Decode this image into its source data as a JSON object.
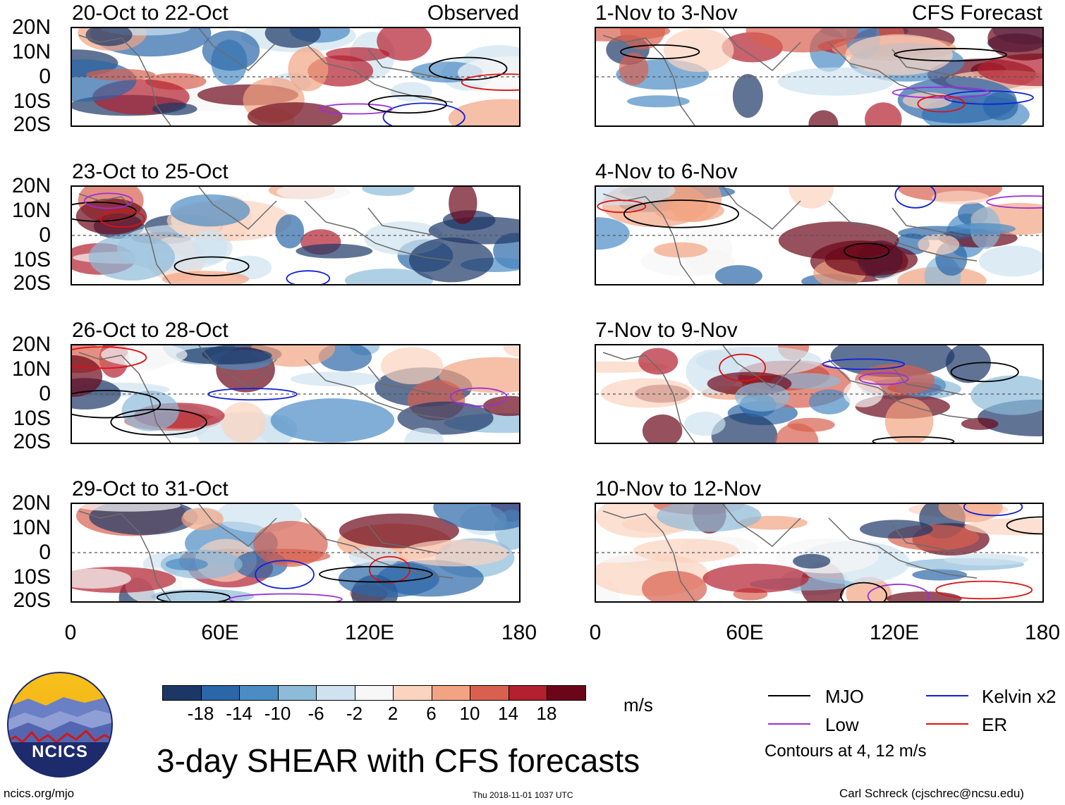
{
  "header": {
    "left_label": "Observed",
    "right_label": "CFS Forecast"
  },
  "observed_panels": [
    {
      "title": "20-Oct to 22-Oct"
    },
    {
      "title": "23-Oct to 25-Oct"
    },
    {
      "title": "26-Oct to 28-Oct"
    },
    {
      "title": "29-Oct to 31-Oct"
    }
  ],
  "forecast_panels": [
    {
      "title": "1-Nov to 3-Nov"
    },
    {
      "title": "4-Nov to 6-Nov"
    },
    {
      "title": "7-Nov to 9-Nov"
    },
    {
      "title": "10-Nov to 12-Nov"
    }
  ],
  "lat_labels": [
    "20N",
    "10N",
    "0",
    "10S",
    "20S"
  ],
  "lon_labels": [
    "0",
    "60E",
    "120E",
    "180"
  ],
  "colorbar": {
    "labels": [
      "-18",
      "-14",
      "-10",
      "-6",
      "-2",
      "2",
      "6",
      "10",
      "14",
      "18"
    ],
    "colors": [
      "#1c3766",
      "#2b66a8",
      "#4b8cc4",
      "#8dbbda",
      "#cfe2ef",
      "#f7f7f7",
      "#fbd3bf",
      "#f2a482",
      "#d9604e",
      "#b3202f",
      "#6b0618"
    ],
    "units": "m/s"
  },
  "legend": {
    "items": [
      {
        "label": "MJO",
        "color": "#000000"
      },
      {
        "label": "Kelvin x2",
        "color": "#1020d8"
      },
      {
        "label": "Low",
        "color": "#9a30d8"
      },
      {
        "label": "ER",
        "color": "#e01010"
      }
    ],
    "note": "Contours at 4, 12 m/s"
  },
  "title": "3-day SHEAR with CFS forecasts",
  "logo": {
    "text": "NCICS"
  },
  "footer": {
    "left": "ncics.org/mjo",
    "center": "Thu 2018-11-01 1037 UTC",
    "right": "Carl Schreck (cjschrec@ncsu.edu)"
  }
}
